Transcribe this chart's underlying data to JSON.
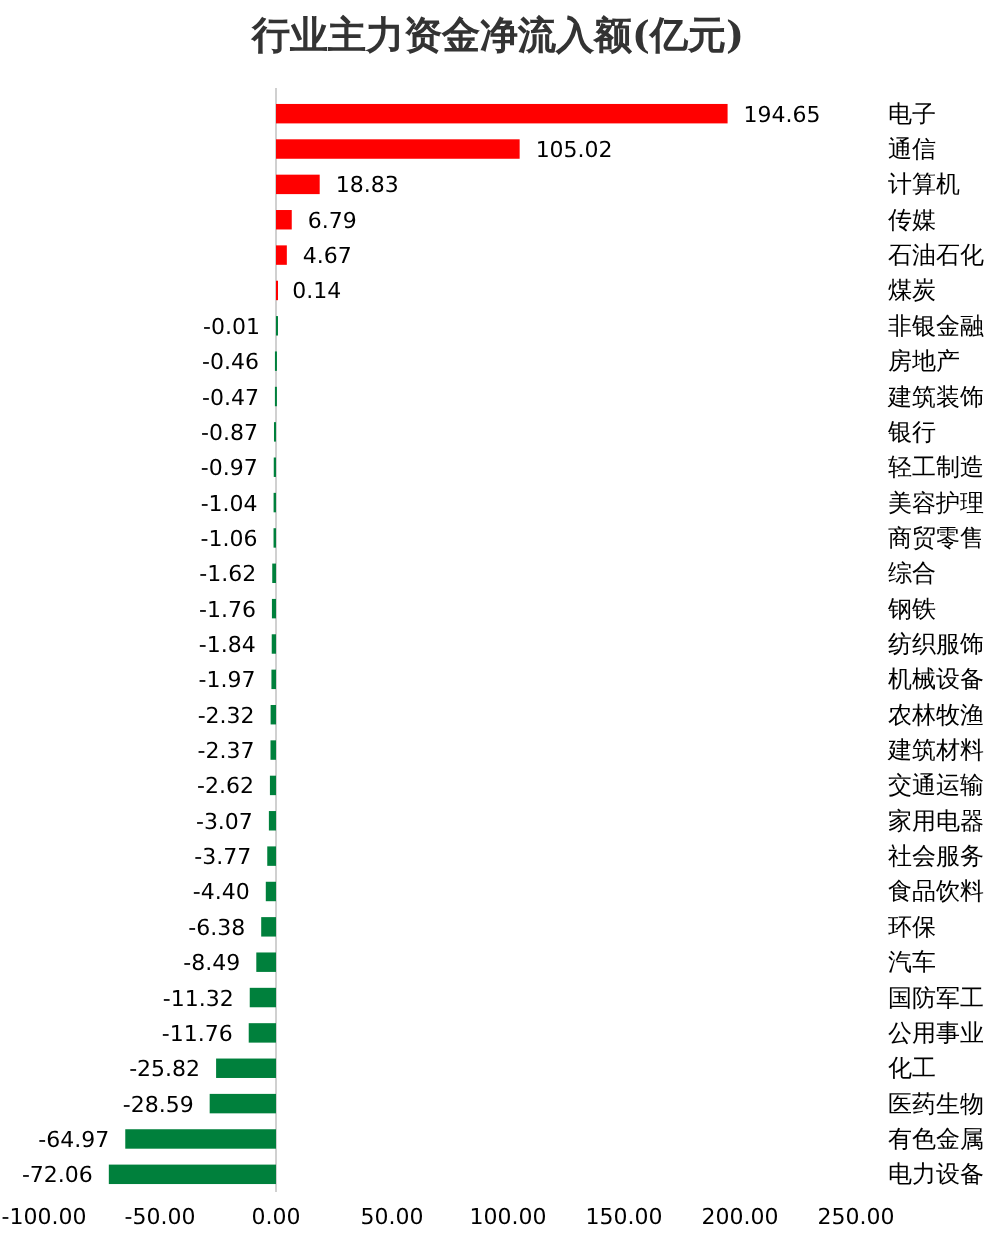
{
  "chart_data": {
    "type": "bar",
    "orientation": "horizontal",
    "title": "行业主力资金净流入额(亿元)",
    "categories": [
      "电子",
      "通信",
      "计算机",
      "传媒",
      "石油石化",
      "煤炭",
      "非银金融",
      "房地产",
      "建筑装饰",
      "银行",
      "轻工制造",
      "美容护理",
      "商贸零售",
      "综合",
      "钢铁",
      "纺织服饰",
      "机械设备",
      "农林牧渔",
      "建筑材料",
      "交通运输",
      "家用电器",
      "社会服务",
      "食品饮料",
      "环保",
      "汽车",
      "国防军工",
      "公用事业",
      "化工",
      "医药生物",
      "有色金属",
      "电力设备"
    ],
    "values": [
      194.65,
      105.02,
      18.83,
      6.79,
      4.67,
      0.14,
      -0.01,
      -0.46,
      -0.47,
      -0.87,
      -0.97,
      -1.04,
      -1.06,
      -1.62,
      -1.76,
      -1.84,
      -1.97,
      -2.32,
      -2.37,
      -2.62,
      -3.07,
      -3.77,
      -4.4,
      -6.38,
      -8.49,
      -11.32,
      -11.76,
      -25.82,
      -28.59,
      -64.97,
      -72.06
    ],
    "colors": [
      "#ff0000",
      "#ff0000",
      "#ff0000",
      "#ff0000",
      "#ff0000",
      "#ff0000",
      "#00803c",
      "#00803c",
      "#00803c",
      "#00803c",
      "#00803c",
      "#00803c",
      "#00803c",
      "#00803c",
      "#00803c",
      "#00803c",
      "#00803c",
      "#00803c",
      "#00803c",
      "#00803c",
      "#00803c",
      "#00803c",
      "#00803c",
      "#00803c",
      "#00803c",
      "#00803c",
      "#00803c",
      "#00803c",
      "#00803c",
      "#00803c",
      "#00803c"
    ],
    "value_labels": [
      "194.65",
      "105.02",
      "18.83",
      "6.79",
      "4.67",
      "0.14",
      "-0.01",
      "-0.46",
      "-0.47",
      "-0.87",
      "-0.97",
      "-1.04",
      "-1.06",
      "-1.62",
      "-1.76",
      "-1.84",
      "-1.97",
      "-2.32",
      "-2.37",
      "-2.62",
      "-3.07",
      "-3.77",
      "-4.40",
      "-6.38",
      "-8.49",
      "-11.32",
      "-11.76",
      "-25.82",
      "-28.59",
      "-64.97",
      "-72.06"
    ],
    "xlim": [
      -100,
      250
    ],
    "xticks": [
      {
        "value": -100,
        "label": "-100.00"
      },
      {
        "value": -50,
        "label": "-50.00"
      },
      {
        "value": 0,
        "label": "0.00"
      },
      {
        "value": 50,
        "label": "50.00"
      },
      {
        "value": 100,
        "label": "100.00"
      },
      {
        "value": 150,
        "label": "150.00"
      },
      {
        "value": 200,
        "label": "200.00"
      },
      {
        "value": 250,
        "label": "250.00"
      }
    ]
  }
}
